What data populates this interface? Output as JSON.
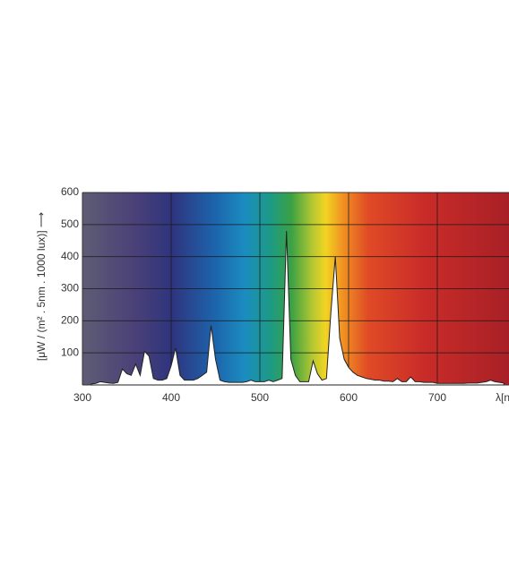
{
  "chart_data": {
    "type": "area",
    "y_label": "[μW / (m² . 5nm . 1000 lux)] ⟶",
    "x_label": "λ[nm]",
    "x": [
      310,
      315,
      320,
      325,
      330,
      335,
      340,
      345,
      350,
      355,
      360,
      365,
      370,
      375,
      380,
      385,
      390,
      395,
      400,
      405,
      410,
      415,
      420,
      425,
      430,
      435,
      440,
      445,
      450,
      455,
      460,
      465,
      470,
      475,
      480,
      485,
      490,
      495,
      500,
      505,
      510,
      515,
      520,
      525,
      530,
      535,
      540,
      545,
      550,
      555,
      560,
      565,
      570,
      575,
      580,
      585,
      590,
      595,
      600,
      605,
      610,
      615,
      620,
      625,
      630,
      635,
      640,
      645,
      650,
      655,
      660,
      665,
      670,
      675,
      680,
      685,
      690,
      695,
      700,
      705,
      710,
      715,
      720,
      725,
      730,
      735,
      740,
      745,
      750,
      755,
      760,
      765,
      770,
      775
    ],
    "values": [
      3,
      5,
      10,
      8,
      6,
      5,
      8,
      50,
      35,
      30,
      65,
      30,
      105,
      90,
      20,
      15,
      15,
      20,
      60,
      115,
      30,
      15,
      15,
      15,
      20,
      30,
      40,
      185,
      80,
      15,
      10,
      8,
      8,
      8,
      8,
      10,
      15,
      10,
      10,
      10,
      15,
      10,
      15,
      20,
      480,
      80,
      30,
      10,
      10,
      10,
      75,
      35,
      15,
      20,
      225,
      400,
      145,
      80,
      55,
      40,
      30,
      25,
      20,
      18,
      15,
      15,
      12,
      12,
      10,
      20,
      10,
      10,
      25,
      10,
      10,
      8,
      8,
      8,
      5,
      5,
      5,
      5,
      5,
      5,
      5,
      6,
      6,
      6,
      8,
      10,
      15,
      10,
      8,
      6
    ],
    "color": "#ffffff",
    "xlim": [
      300,
      777
    ],
    "ylim": [
      0,
      600
    ],
    "xticks": [
      300,
      400,
      500,
      600,
      700
    ],
    "yticks": [
      100,
      200,
      300,
      400,
      500,
      600
    ],
    "grid": true
  }
}
